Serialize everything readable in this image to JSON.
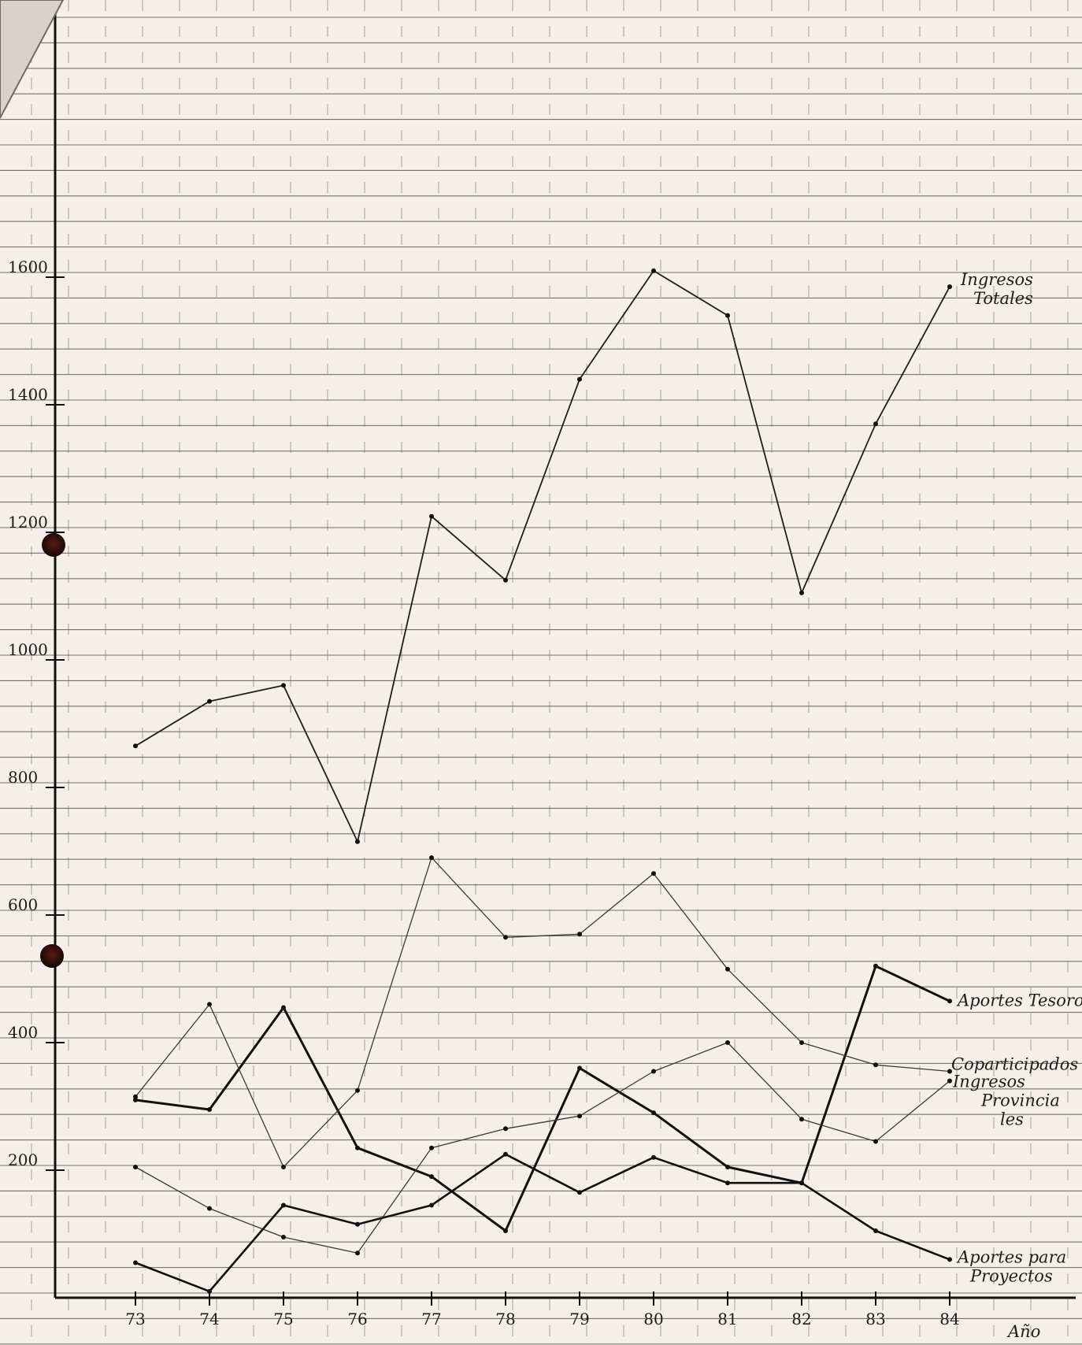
{
  "chart_data": {
    "type": "line",
    "x": [
      "73",
      "74",
      "75",
      "76",
      "77",
      "78",
      "79",
      "80",
      "81",
      "82",
      "83",
      "84"
    ],
    "xlabel": "Año",
    "ylabel": "",
    "ylim": [
      0,
      1800
    ],
    "yticks": [
      {
        "value": 200,
        "label": "200"
      },
      {
        "value": 400,
        "label": "400"
      },
      {
        "value": 600,
        "label": "600"
      },
      {
        "value": 800,
        "label": "800"
      },
      {
        "value": 1000,
        "label": "1000"
      },
      {
        "value": 1200,
        "label": "1200"
      },
      {
        "value": 1400,
        "label": "1400"
      },
      {
        "value": 1600,
        "label": "1600"
      }
    ],
    "grid": true,
    "series": [
      {
        "name": "Ingresos Totales",
        "label_lines": [
          "Ingresos",
          "Totales"
        ],
        "values": [
          865,
          935,
          960,
          715,
          1225,
          1125,
          1440,
          1610,
          1540,
          1105,
          1370,
          1585
        ],
        "color": "#1e1e1e",
        "width": 1.8
      },
      {
        "name": "Aportes Tesoro",
        "label_lines": [
          "Aportes Tesoro"
        ],
        "values": [
          310,
          295,
          455,
          235,
          190,
          105,
          360,
          290,
          205,
          180,
          520,
          465
        ],
        "color": "#111111",
        "width": 3
      },
      {
        "name": "Coparticipados",
        "label_lines": [
          "Coparticipados"
        ],
        "values": [
          315,
          460,
          205,
          325,
          690,
          565,
          570,
          665,
          515,
          400,
          365,
          355
        ],
        "color": "#3a3a3a",
        "width": 1.3
      },
      {
        "name": "Ingresos Provinciales",
        "label_lines": [
          "Ingresos",
          "Provincia",
          "les"
        ],
        "values": [
          205,
          140,
          95,
          70,
          235,
          265,
          285,
          355,
          400,
          280,
          245,
          340
        ],
        "color": "#3a3a3a",
        "width": 1.3
      },
      {
        "name": "Aportes para Proyectos",
        "label_lines": [
          "Aportes para",
          "Proyectos"
        ],
        "values": [
          55,
          10,
          145,
          115,
          145,
          225,
          165,
          220,
          180,
          180,
          105,
          60
        ],
        "color": "#111111",
        "width": 2.6
      }
    ]
  }
}
